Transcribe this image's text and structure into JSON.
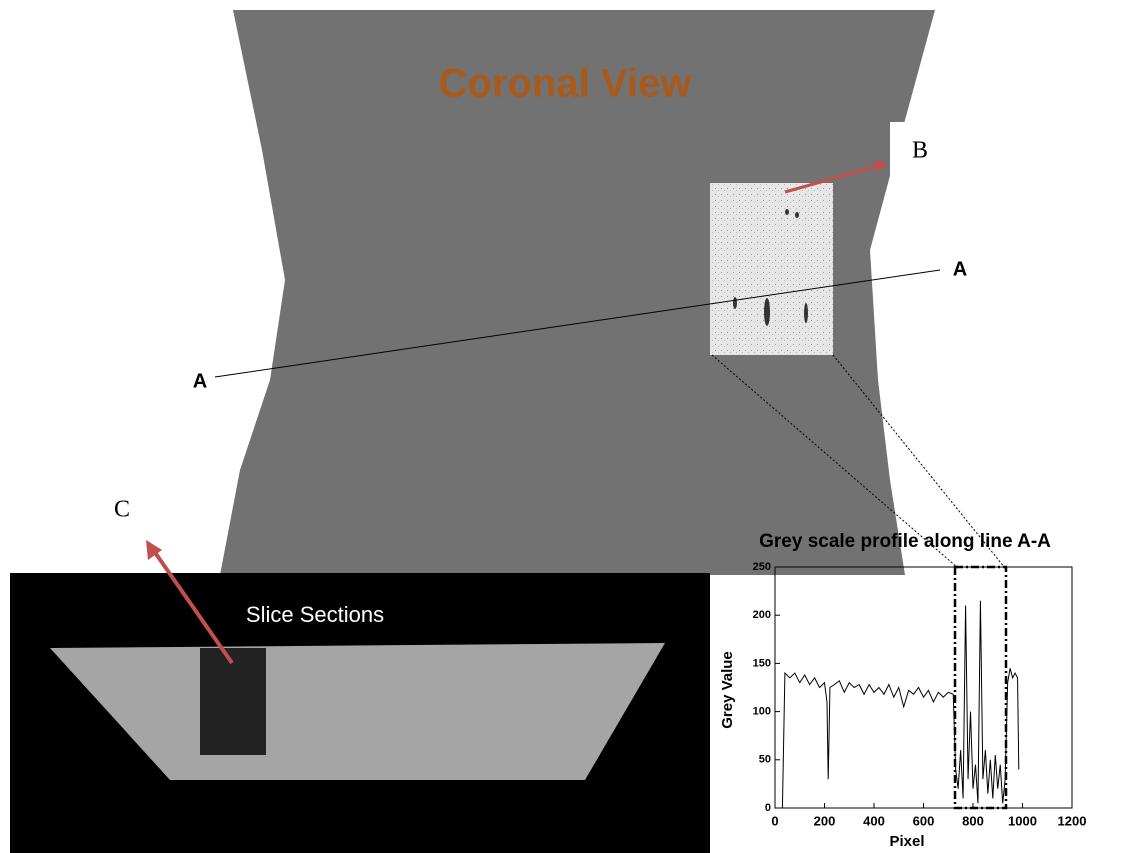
{
  "figure": {
    "view_title": "Coronal View",
    "label_b": "B",
    "label_a_left": "A",
    "label_a_right": "A",
    "label_c": "C",
    "slice_title": "Slice Sections"
  },
  "chart_data": {
    "type": "line",
    "title": "Grey scale profile along line A-A",
    "x_label": "Pixel",
    "y_label": "Grey Value",
    "x": [
      30,
      40,
      60,
      80,
      100,
      120,
      140,
      160,
      180,
      200,
      210,
      215,
      222,
      240,
      260,
      280,
      300,
      320,
      340,
      360,
      380,
      400,
      420,
      440,
      460,
      480,
      500,
      520,
      540,
      560,
      580,
      600,
      620,
      640,
      660,
      680,
      700,
      720,
      730,
      740,
      750,
      760,
      770,
      780,
      790,
      800,
      810,
      820,
      830,
      840,
      850,
      860,
      870,
      880,
      890,
      900,
      910,
      920,
      930,
      940,
      950,
      960,
      970,
      980,
      985
    ],
    "values": [
      0,
      140,
      135,
      140,
      130,
      138,
      128,
      135,
      125,
      130,
      110,
      30,
      125,
      128,
      132,
      120,
      130,
      125,
      128,
      118,
      128,
      120,
      125,
      118,
      128,
      115,
      125,
      105,
      122,
      118,
      125,
      115,
      122,
      110,
      120,
      115,
      120,
      118,
      40,
      20,
      60,
      10,
      210,
      30,
      100,
      20,
      45,
      5,
      215,
      30,
      60,
      15,
      50,
      10,
      55,
      20,
      45,
      5,
      30,
      130,
      145,
      135,
      140,
      135,
      40
    ],
    "color": "#000000",
    "xlim": [
      0,
      1200
    ],
    "xticks": [
      0,
      200,
      400,
      600,
      800,
      1000,
      1200
    ],
    "ylim": [
      0,
      250
    ],
    "yticks": [
      0,
      50,
      100,
      150,
      200,
      250
    ]
  }
}
